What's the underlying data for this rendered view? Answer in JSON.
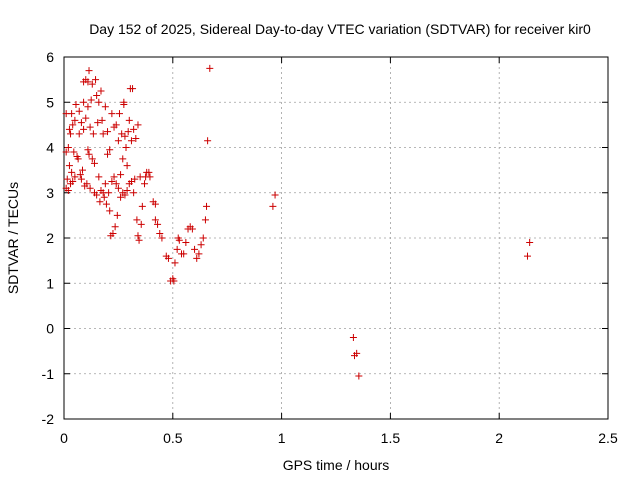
{
  "chart_data": {
    "type": "scatter",
    "title": "Day 152 of 2025, Sidereal Day-to-day VTEC variation (SDTVAR) for receiver kir0",
    "xlabel": "GPS time / hours",
    "ylabel": "SDTVAR / TECUs",
    "xlim": [
      0,
      2.5
    ],
    "ylim": [
      -2,
      6
    ],
    "xticks": [
      0,
      0.5,
      1,
      1.5,
      2,
      2.5
    ],
    "xtick_labels": [
      "0",
      "0.5",
      "1",
      "1.5",
      "2",
      "2.5"
    ],
    "yticks": [
      -2,
      -1,
      0,
      1,
      2,
      3,
      4,
      5,
      6
    ],
    "ytick_labels": [
      "-2",
      "-1",
      "0",
      "1",
      "2",
      "3",
      "4",
      "5",
      "6"
    ],
    "grid": true,
    "marker": "plus",
    "color": "#cc0000",
    "series": [
      {
        "name": "kir0",
        "points": [
          [
            0.01,
            3.1
          ],
          [
            0.01,
            3.9
          ],
          [
            0.01,
            4.75
          ],
          [
            0.015,
            3.3
          ],
          [
            0.02,
            3.05
          ],
          [
            0.02,
            4.0
          ],
          [
            0.025,
            3.6
          ],
          [
            0.025,
            4.4
          ],
          [
            0.03,
            3.2
          ],
          [
            0.03,
            4.3
          ],
          [
            0.035,
            3.45
          ],
          [
            0.035,
            4.75
          ],
          [
            0.04,
            3.25
          ],
          [
            0.04,
            4.5
          ],
          [
            0.045,
            3.9
          ],
          [
            0.05,
            3.35
          ],
          [
            0.05,
            4.6
          ],
          [
            0.055,
            4.95
          ],
          [
            0.06,
            3.8
          ],
          [
            0.065,
            3.75
          ],
          [
            0.07,
            4.8
          ],
          [
            0.07,
            4.3
          ],
          [
            0.075,
            3.4
          ],
          [
            0.08,
            3.3
          ],
          [
            0.08,
            4.55
          ],
          [
            0.085,
            3.5
          ],
          [
            0.09,
            5.0
          ],
          [
            0.09,
            4.4
          ],
          [
            0.095,
            3.15
          ],
          [
            0.09,
            5.45
          ],
          [
            0.1,
            4.65
          ],
          [
            0.1,
            5.5
          ],
          [
            0.105,
            3.2
          ],
          [
            0.11,
            3.95
          ],
          [
            0.11,
            4.9
          ],
          [
            0.11,
            5.45
          ],
          [
            0.115,
            3.85
          ],
          [
            0.115,
            5.7
          ],
          [
            0.12,
            3.1
          ],
          [
            0.12,
            4.45
          ],
          [
            0.125,
            5.05
          ],
          [
            0.13,
            3.75
          ],
          [
            0.13,
            5.4
          ],
          [
            0.135,
            4.3
          ],
          [
            0.14,
            3.65
          ],
          [
            0.14,
            3.0
          ],
          [
            0.145,
            5.5
          ],
          [
            0.15,
            5.15
          ],
          [
            0.15,
            2.95
          ],
          [
            0.155,
            4.55
          ],
          [
            0.16,
            5.0
          ],
          [
            0.16,
            3.35
          ],
          [
            0.165,
            2.8
          ],
          [
            0.17,
            5.25
          ],
          [
            0.17,
            3.05
          ],
          [
            0.175,
            4.6
          ],
          [
            0.18,
            4.3
          ],
          [
            0.18,
            3.0
          ],
          [
            0.185,
            2.9
          ],
          [
            0.19,
            3.2
          ],
          [
            0.19,
            4.9
          ],
          [
            0.195,
            2.75
          ],
          [
            0.2,
            3.85
          ],
          [
            0.2,
            4.35
          ],
          [
            0.205,
            3.0
          ],
          [
            0.21,
            2.6
          ],
          [
            0.21,
            3.95
          ],
          [
            0.215,
            2.05
          ],
          [
            0.22,
            4.75
          ],
          [
            0.22,
            3.25
          ],
          [
            0.225,
            2.1
          ],
          [
            0.23,
            4.45
          ],
          [
            0.23,
            3.35
          ],
          [
            0.235,
            2.25
          ],
          [
            0.24,
            4.5
          ],
          [
            0.24,
            3.2
          ],
          [
            0.245,
            2.5
          ],
          [
            0.25,
            4.15
          ],
          [
            0.25,
            3.1
          ],
          [
            0.255,
            4.75
          ],
          [
            0.26,
            3.4
          ],
          [
            0.26,
            2.9
          ],
          [
            0.265,
            4.3
          ],
          [
            0.27,
            3.75
          ],
          [
            0.27,
            3.0
          ],
          [
            0.275,
            5.0
          ],
          [
            0.275,
            4.95
          ],
          [
            0.28,
            4.25
          ],
          [
            0.28,
            2.95
          ],
          [
            0.285,
            4.0
          ],
          [
            0.29,
            3.6
          ],
          [
            0.29,
            3.05
          ],
          [
            0.295,
            4.35
          ],
          [
            0.3,
            3.2
          ],
          [
            0.3,
            4.6
          ],
          [
            0.305,
            5.3
          ],
          [
            0.31,
            3.25
          ],
          [
            0.31,
            4.15
          ],
          [
            0.315,
            5.3
          ],
          [
            0.32,
            3.0
          ],
          [
            0.32,
            4.4
          ],
          [
            0.325,
            3.3
          ],
          [
            0.33,
            4.2
          ],
          [
            0.335,
            2.4
          ],
          [
            0.34,
            2.05
          ],
          [
            0.34,
            4.5
          ],
          [
            0.345,
            1.95
          ],
          [
            0.35,
            3.35
          ],
          [
            0.355,
            2.3
          ],
          [
            0.36,
            2.7
          ],
          [
            0.37,
            3.2
          ],
          [
            0.375,
            3.35
          ],
          [
            0.38,
            3.45
          ],
          [
            0.39,
            3.45
          ],
          [
            0.395,
            3.35
          ],
          [
            0.41,
            2.8
          ],
          [
            0.42,
            2.75
          ],
          [
            0.42,
            2.4
          ],
          [
            0.43,
            2.3
          ],
          [
            0.44,
            2.1
          ],
          [
            0.45,
            2.0
          ],
          [
            0.47,
            1.6
          ],
          [
            0.48,
            1.55
          ],
          [
            0.49,
            1.05
          ],
          [
            0.5,
            1.1
          ],
          [
            0.505,
            1.05
          ],
          [
            0.51,
            1.45
          ],
          [
            0.52,
            1.75
          ],
          [
            0.525,
            2.0
          ],
          [
            0.53,
            1.95
          ],
          [
            0.54,
            1.65
          ],
          [
            0.55,
            1.65
          ],
          [
            0.56,
            1.9
          ],
          [
            0.57,
            2.2
          ],
          [
            0.58,
            2.25
          ],
          [
            0.59,
            2.2
          ],
          [
            0.6,
            1.75
          ],
          [
            0.61,
            1.55
          ],
          [
            0.62,
            1.65
          ],
          [
            0.63,
            1.85
          ],
          [
            0.64,
            2.0
          ],
          [
            0.65,
            2.4
          ],
          [
            0.655,
            2.7
          ],
          [
            0.66,
            4.15
          ],
          [
            0.67,
            5.75
          ],
          [
            0.96,
            2.7
          ],
          [
            0.97,
            2.95
          ],
          [
            1.33,
            -0.2
          ],
          [
            1.335,
            -0.6
          ],
          [
            1.345,
            -0.55
          ],
          [
            1.355,
            -1.05
          ],
          [
            2.13,
            1.6
          ],
          [
            2.14,
            1.9
          ]
        ]
      }
    ]
  }
}
